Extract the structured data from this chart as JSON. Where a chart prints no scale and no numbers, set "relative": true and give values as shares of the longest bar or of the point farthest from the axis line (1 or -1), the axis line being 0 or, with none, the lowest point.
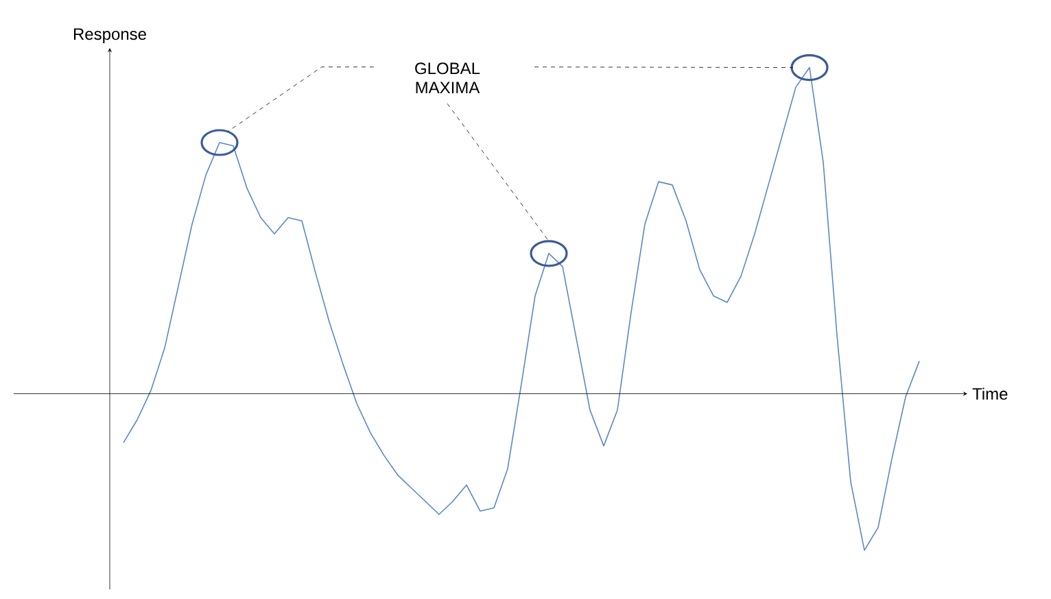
{
  "chart_data": {
    "type": "line",
    "relative": true,
    "xlabel": "Time",
    "ylabel": "Response",
    "annotations": [
      "GLOBAL MAXIMA"
    ],
    "color": "#5b87c5",
    "categories": [
      null,
      null,
      null,
      null,
      null,
      null,
      null,
      null,
      null,
      null,
      null,
      null,
      null,
      null,
      null,
      null,
      null,
      null,
      null,
      null,
      null,
      null,
      null,
      null,
      null,
      null,
      null,
      null,
      null,
      null,
      null,
      null,
      null,
      null,
      null,
      null,
      null,
      null,
      null,
      null,
      null,
      null,
      null,
      null,
      null,
      null,
      null,
      null,
      null,
      null,
      null,
      null,
      null,
      null,
      null,
      null,
      null,
      null,
      null
    ],
    "values": [
      -0.15,
      -0.08,
      0.01,
      0.14,
      0.33,
      0.52,
      0.67,
      0.77,
      0.76,
      0.63,
      0.54,
      0.49,
      0.54,
      0.53,
      0.37,
      0.22,
      0.09,
      -0.03,
      -0.12,
      -0.19,
      -0.25,
      -0.29,
      -0.33,
      -0.37,
      -0.33,
      -0.28,
      -0.36,
      -0.35,
      -0.23,
      0.03,
      0.3,
      0.43,
      0.39,
      0.17,
      -0.05,
      -0.16,
      -0.05,
      0.25,
      0.52,
      0.65,
      0.64,
      0.53,
      0.38,
      0.3,
      0.28,
      0.36,
      0.49,
      0.64,
      0.79,
      0.94,
      1.0,
      0.71,
      0.18,
      -0.27,
      -0.48,
      -0.41,
      -0.2,
      -0.01,
      0.1
    ]
  }
}
